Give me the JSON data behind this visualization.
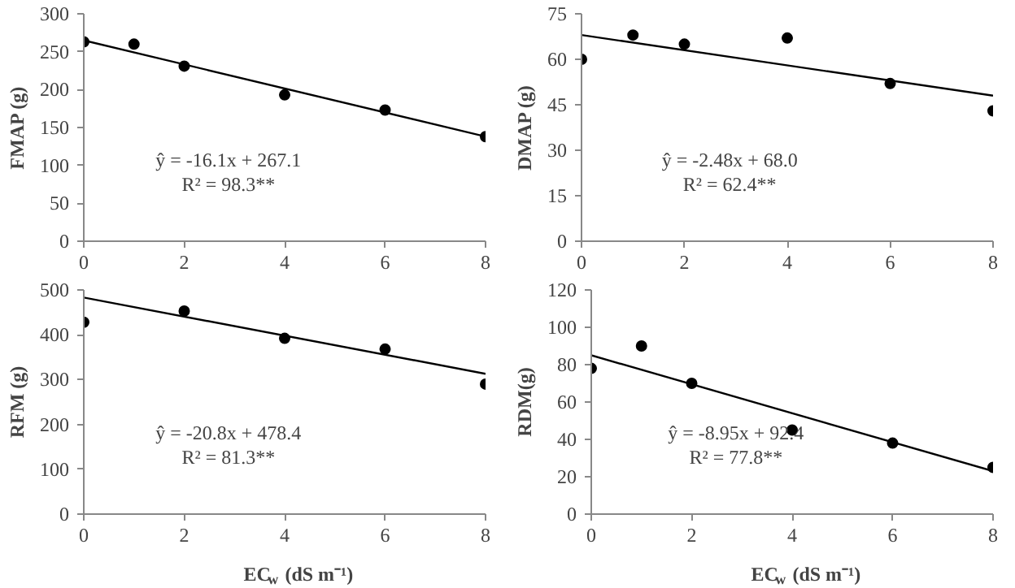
{
  "chart_data": [
    {
      "type": "scatter",
      "ylabel": "FMAP (g)",
      "xlim": [
        0,
        8
      ],
      "xticks": [
        0,
        2,
        4,
        6,
        8
      ],
      "ylim": [
        0,
        300
      ],
      "yticks": [
        0,
        50,
        100,
        150,
        200,
        250,
        300
      ],
      "annotations": [
        "ŷ = -16.1x + 267.1",
        "R² = 98.3**"
      ],
      "series": [
        {
          "color": "#000000",
          "marker": "circle",
          "x": [
            0,
            1,
            2,
            4,
            6,
            8
          ],
          "values": [
            263,
            260,
            231,
            193,
            173,
            138
          ]
        },
        {
          "type": "line",
          "color": "#000000",
          "marker": "none",
          "x": [
            0,
            8
          ],
          "values": [
            265,
            138
          ]
        }
      ]
    },
    {
      "type": "scatter",
      "ylabel": "DMAP (g)",
      "xlim": [
        0,
        8
      ],
      "xticks": [
        0,
        2,
        4,
        6,
        8
      ],
      "ylim": [
        0,
        75
      ],
      "yticks": [
        0,
        15,
        30,
        45,
        60,
        75
      ],
      "annotations": [
        "ŷ = -2.48x + 68.0",
        "R² = 62.4**"
      ],
      "series": [
        {
          "color": "#000000",
          "marker": "circle",
          "x": [
            0,
            1,
            2,
            4,
            6,
            8
          ],
          "values": [
            60,
            68,
            65,
            67,
            52,
            43
          ]
        },
        {
          "type": "line",
          "color": "#000000",
          "marker": "none",
          "x": [
            0,
            8
          ],
          "values": [
            68,
            48
          ]
        }
      ]
    },
    {
      "type": "scatter",
      "ylabel": "RFM (g)",
      "xlabel": "EC$_{w}$ (dS m⁻¹)",
      "xlim": [
        0,
        8
      ],
      "xticks": [
        0,
        2,
        4,
        6,
        8
      ],
      "ylim": [
        0,
        500
      ],
      "yticks": [
        0,
        100,
        200,
        300,
        400,
        500
      ],
      "annotations": [
        "ŷ = -20.8x + 478.4",
        "R² = 81.3**"
      ],
      "series": [
        {
          "color": "#000000",
          "marker": "circle",
          "x": [
            0,
            2,
            4,
            6,
            8
          ],
          "values": [
            428,
            453,
            392,
            368,
            290
          ]
        },
        {
          "type": "line",
          "color": "#000000",
          "marker": "none",
          "x": [
            0,
            8
          ],
          "values": [
            483,
            313
          ]
        }
      ]
    },
    {
      "type": "scatter",
      "ylabel": "RDM(g)",
      "xlabel": "EC$_{w}$ (dS m⁻¹)",
      "xlim": [
        0,
        8
      ],
      "xticks": [
        0,
        2,
        4,
        6,
        8
      ],
      "ylim": [
        0,
        120
      ],
      "yticks": [
        0,
        20,
        40,
        60,
        80,
        100,
        120
      ],
      "annotations": [
        "ŷ = -8.95x + 92.4",
        "R² = 77.8**"
      ],
      "series": [
        {
          "color": "#000000",
          "marker": "circle",
          "x": [
            0,
            1,
            2,
            4,
            6,
            8
          ],
          "values": [
            78,
            90,
            70,
            45,
            38,
            25
          ]
        },
        {
          "type": "line",
          "color": "#000000",
          "marker": "none",
          "x": [
            0,
            8
          ],
          "values": [
            85,
            23
          ]
        }
      ]
    }
  ]
}
